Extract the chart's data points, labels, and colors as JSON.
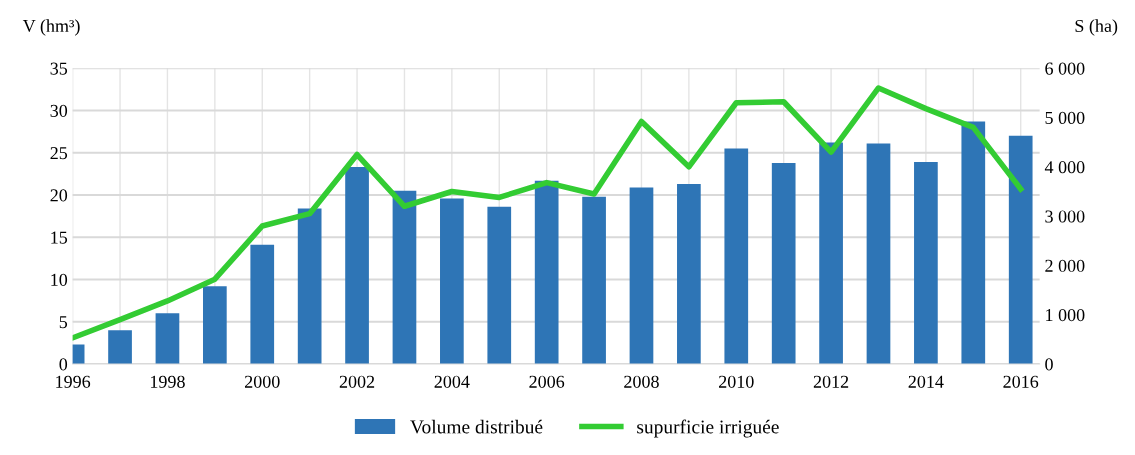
{
  "chart_data": {
    "type": "bar",
    "x": [
      1996,
      1997,
      1998,
      1999,
      2000,
      2001,
      2002,
      2003,
      2004,
      2005,
      2006,
      2007,
      2008,
      2009,
      2010,
      2011,
      2012,
      2013,
      2014,
      2015,
      2016
    ],
    "series": [
      {
        "name": "Volume distribué",
        "color": "#2e75b6",
        "values": [
          2.3,
          4,
          6,
          9.2,
          14.1,
          18.4,
          23.3,
          20.5,
          19.6,
          18.6,
          21.7,
          19.8,
          20.9,
          21.3,
          25.5,
          23.8,
          26.2,
          26.1,
          23.9,
          28.7,
          27.0
        ]
      },
      {
        "name": "supurficie irriguée",
        "type": "line",
        "axis": "y2",
        "color": "#33cc33",
        "values": [
          530,
          900,
          1280,
          1720,
          2800,
          3050,
          4250,
          3200,
          3500,
          3380,
          3680,
          3450,
          4920,
          4000,
          5300,
          5320,
          4300,
          5600,
          5180,
          4800,
          3550
        ]
      }
    ],
    "ylabel": "V (hm³)",
    "y2label": "S (ha)",
    "xlim": [
      1996,
      2016.4
    ],
    "xticks": [
      1996,
      {
        "value": 1997,
        "label": null
      },
      1998,
      {
        "value": 1999,
        "label": null
      },
      2000,
      {
        "value": 2001,
        "label": null
      },
      2002,
      {
        "value": 2003,
        "label": null
      },
      2004,
      {
        "value": 2005,
        "label": null
      },
      2006,
      {
        "value": 2007,
        "label": null
      },
      2008,
      {
        "value": 2009,
        "label": null
      },
      2010,
      {
        "value": 2011,
        "label": null
      },
      2012,
      {
        "value": 2013,
        "label": null
      },
      2014,
      {
        "value": 2015,
        "label": null
      },
      2016
    ],
    "ylim": [
      0,
      35
    ],
    "yticks": [
      0,
      5,
      10,
      15,
      20,
      25,
      30,
      35
    ],
    "y2lim": [
      0,
      6000
    ],
    "y2ticks": [
      0,
      {
        "value": 1000,
        "label": "1 000"
      },
      {
        "value": 2000,
        "label": "2 000"
      },
      {
        "value": 3000,
        "label": "3 000"
      },
      {
        "value": 4000,
        "label": "4 000"
      },
      {
        "value": 5000,
        "label": "5 000"
      },
      {
        "value": 6000,
        "label": "6 000"
      }
    ],
    "grid": true,
    "legend": "bottom",
    "marker": "none",
    "line_style": "solid"
  }
}
